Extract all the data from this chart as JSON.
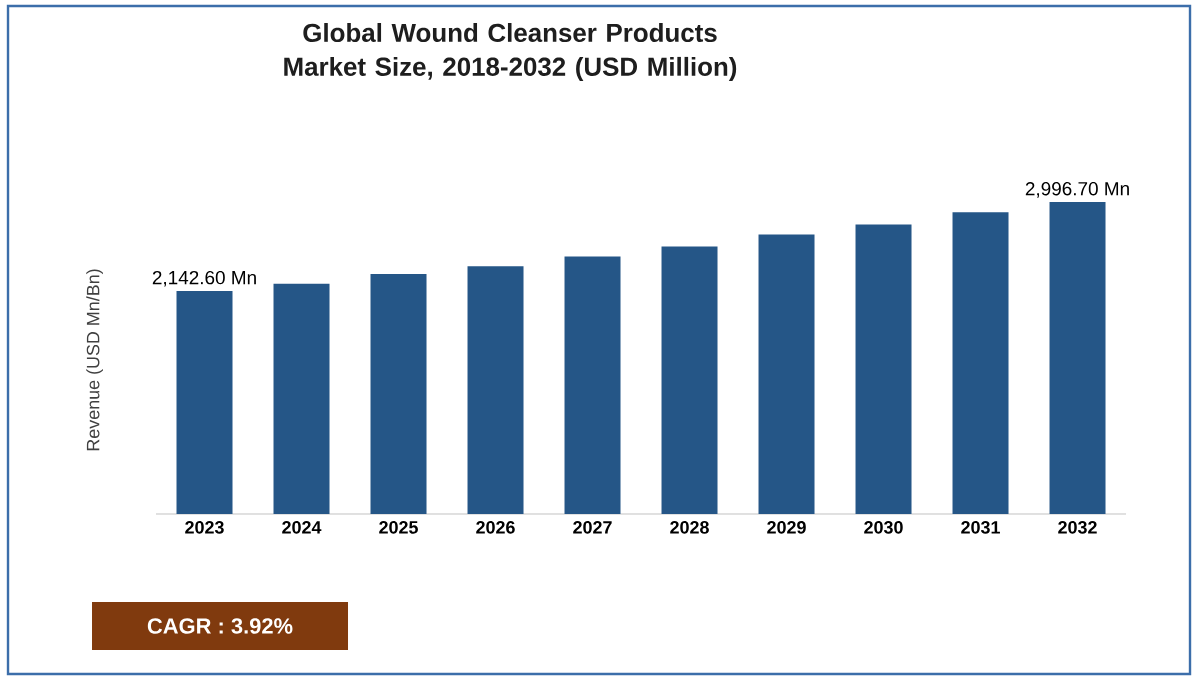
{
  "chart_data": {
    "type": "bar",
    "title": "Global Wound Cleanser Products Market Size, 2018-2032 (USD Million)",
    "ylabel": "Revenue (USD Mn/Bn)",
    "categories": [
      "2023",
      "2024",
      "2025",
      "2026",
      "2027",
      "2028",
      "2029",
      "2030",
      "2031",
      "2032"
    ],
    "values": [
      2142.6,
      2211,
      2306,
      2379,
      2474,
      2569,
      2686,
      2782,
      2899,
      2996.7
    ],
    "value_labels": [
      "2,142.60 Mn",
      null,
      null,
      null,
      null,
      null,
      null,
      null,
      null,
      "2,996.70 Mn"
    ],
    "color": "#255687",
    "annotations": [
      "CAGR : 3.92%"
    ]
  }
}
